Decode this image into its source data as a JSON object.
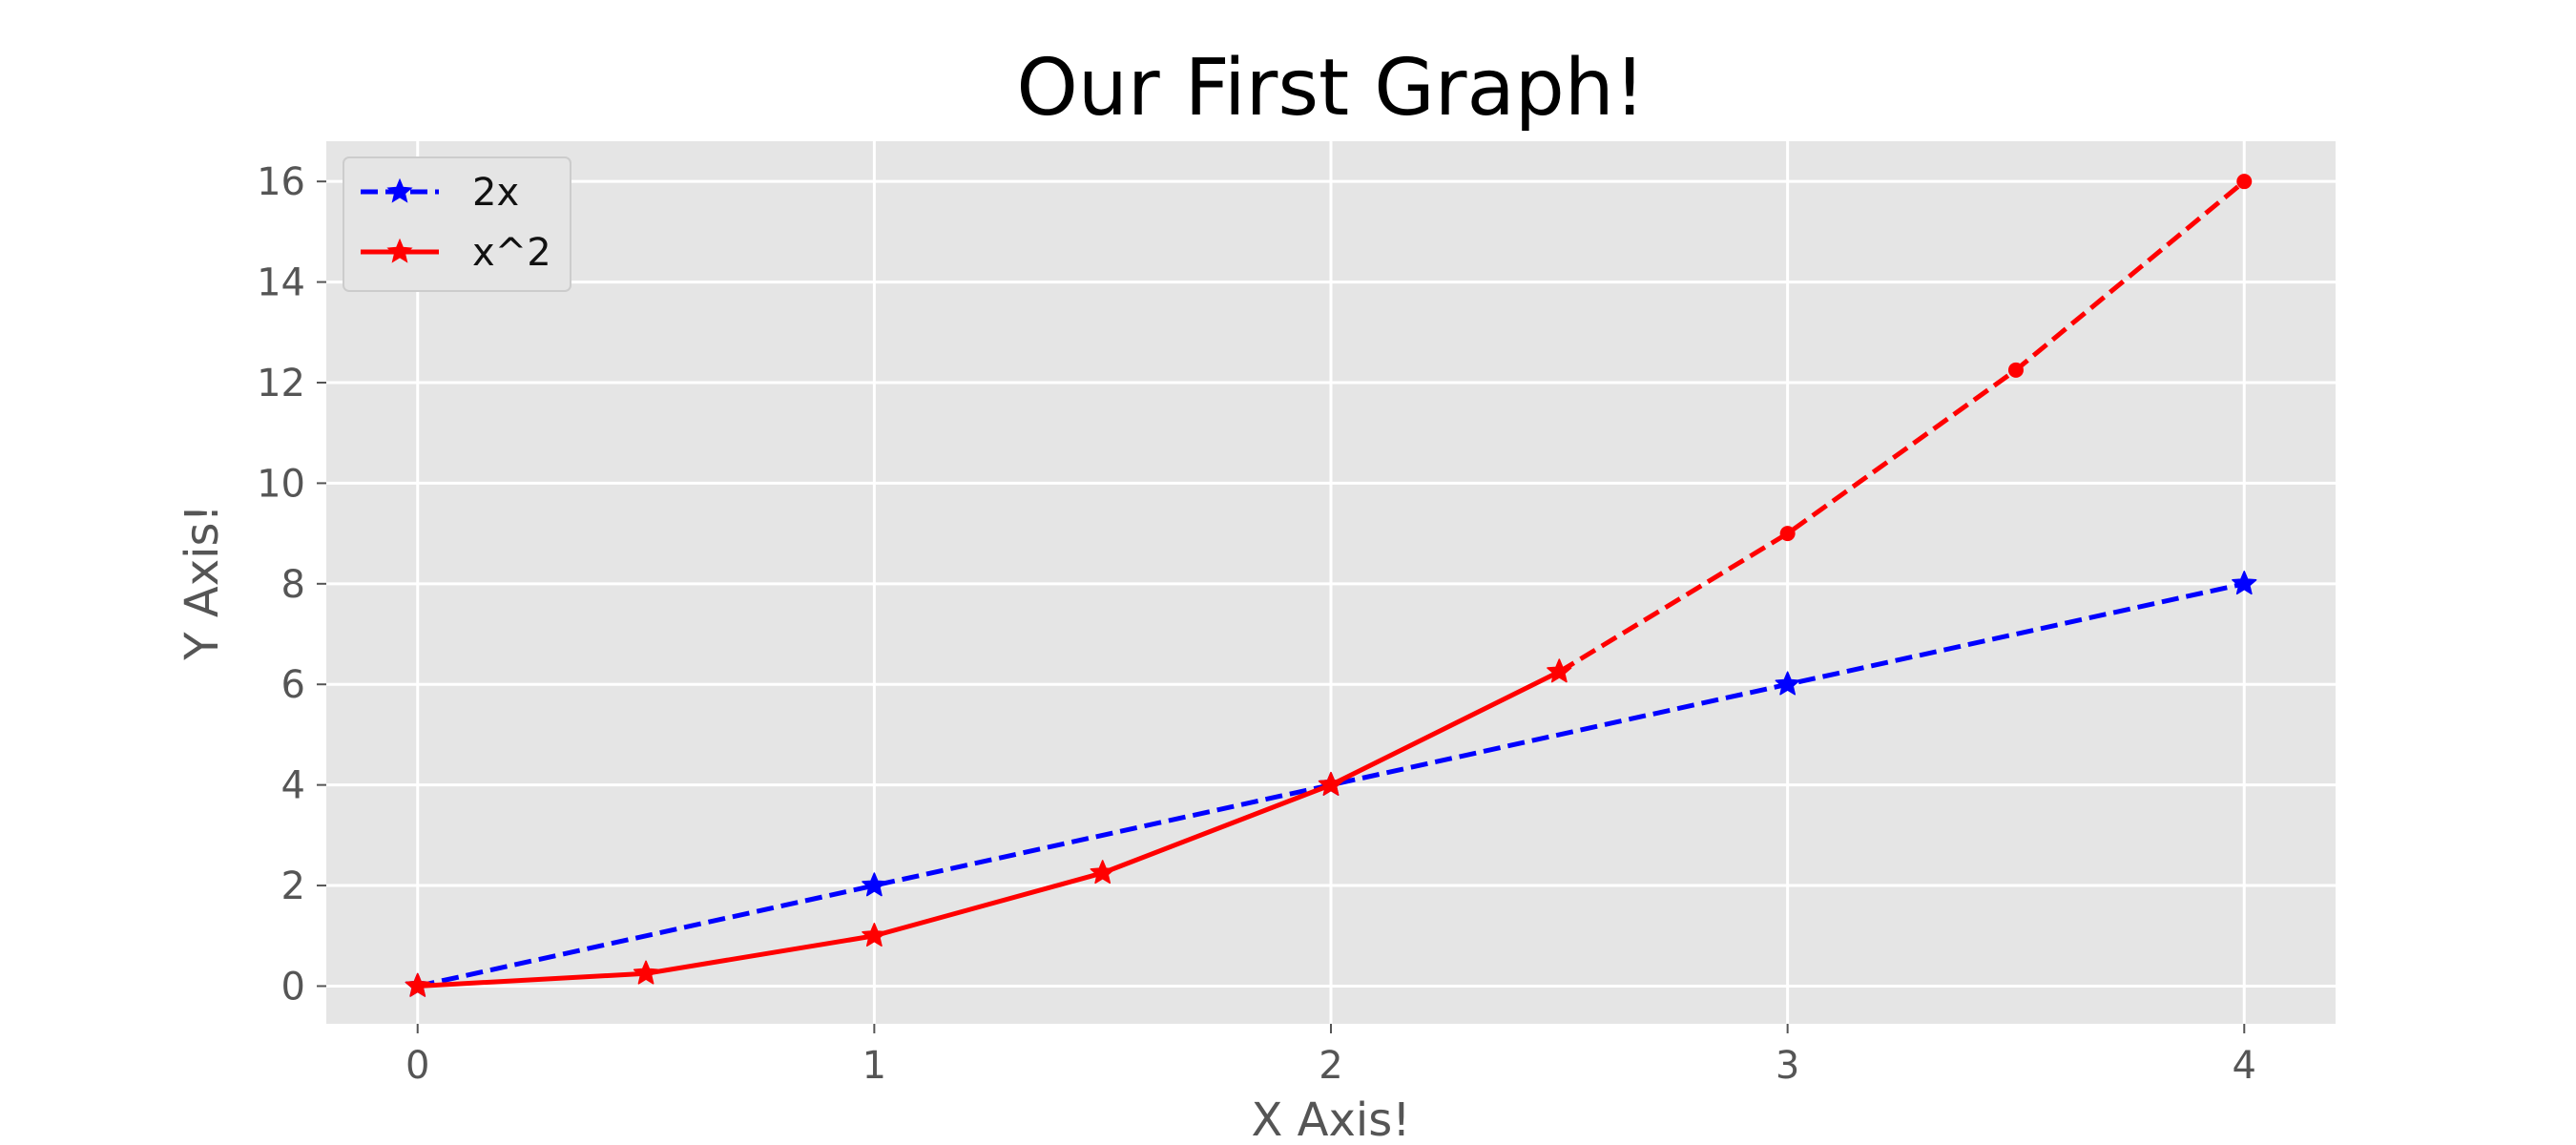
{
  "chart_data": {
    "type": "line",
    "title": "Our First Graph!",
    "xlabel": "X Axis!",
    "ylabel": "Y Axis!",
    "xlim": [
      -0.2,
      4.2
    ],
    "ylim": [
      -0.75,
      16.8
    ],
    "x_ticks": [
      0,
      1,
      2,
      3,
      4
    ],
    "y_ticks": [
      0,
      2,
      4,
      6,
      8,
      10,
      12,
      14,
      16
    ],
    "grid": true,
    "background": "#e5e5e5",
    "legend_position": "top-left",
    "series": [
      {
        "name": "2x",
        "color": "#0000ff",
        "line_style": "dashed",
        "marker": "star",
        "x": [
          0,
          1,
          2,
          3,
          4
        ],
        "y": [
          0,
          2,
          4,
          6,
          8
        ]
      },
      {
        "name": "x^2",
        "color": "#ff0000",
        "line_style": "solid",
        "marker": "star",
        "x": [
          0,
          0.5,
          1,
          1.5,
          2,
          2.5
        ],
        "y": [
          0,
          0.25,
          1,
          2.25,
          4,
          6.25
        ]
      },
      {
        "color": "#ff0000",
        "line_style": "dashed",
        "marker": "dot",
        "x": [
          2.5,
          3,
          3.5,
          4
        ],
        "y": [
          6.25,
          9,
          12.25,
          16
        ],
        "marker_x": [
          3,
          3.5,
          4
        ],
        "marker_y": [
          9,
          12.25,
          16
        ]
      }
    ]
  }
}
